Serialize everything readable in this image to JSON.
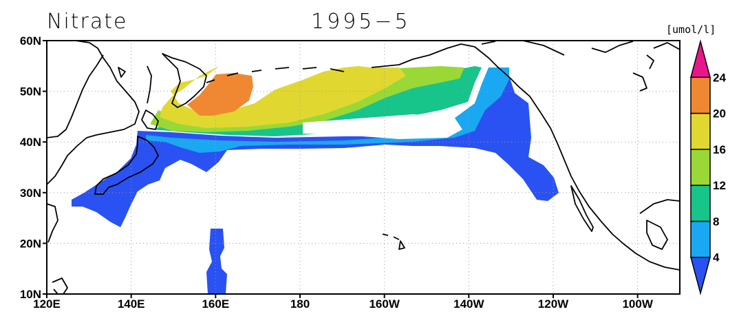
{
  "title": {
    "left": "Nitrate",
    "center": "1995−5"
  },
  "colorbar": {
    "unit": "[umol/l]",
    "levels": [
      {
        "color": "#2a52f2",
        "label": "4"
      },
      {
        "color": "#1aa8f2",
        "label": "8"
      },
      {
        "color": "#17c48a",
        "label": "12"
      },
      {
        "color": "#9ad835",
        "label": "16"
      },
      {
        "color": "#e0d830",
        "label": "20"
      },
      {
        "color": "#f08832",
        "label": "24"
      },
      {
        "color": "#e8168a",
        "label": ""
      }
    ]
  },
  "axes": {
    "x_ticks": [
      "120E",
      "140E",
      "160E",
      "180",
      "160W",
      "140W",
      "120W",
      "100W"
    ],
    "y_ticks": [
      "10N",
      "20N",
      "30N",
      "40N",
      "50N",
      "60N"
    ]
  },
  "colors": {
    "land_outline": "#000000",
    "grid": "#9a9a9a"
  }
}
